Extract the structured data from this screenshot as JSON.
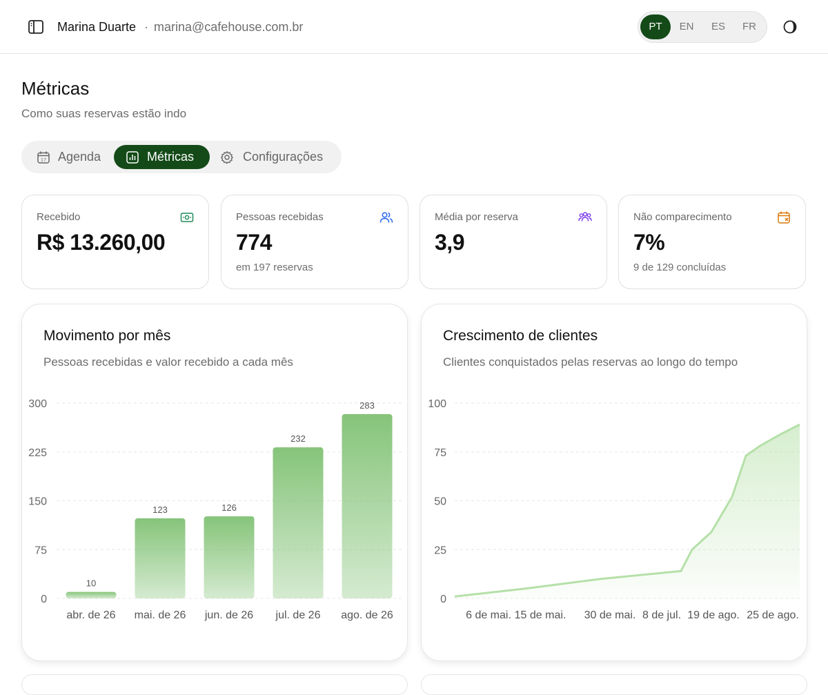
{
  "header": {
    "user_name": "Marina Duarte",
    "separator": "·",
    "user_email": "marina@cafehouse.com.br",
    "languages": [
      "PT",
      "EN",
      "ES",
      "FR"
    ],
    "active_language": "PT"
  },
  "page": {
    "title": "Métricas",
    "subtitle": "Como suas reservas estão indo"
  },
  "tabs": [
    {
      "label": "Agenda",
      "icon": "calendar-icon",
      "active": false
    },
    {
      "label": "Métricas",
      "icon": "bar-chart-icon",
      "active": true
    },
    {
      "label": "Configurações",
      "icon": "gear-icon",
      "active": false
    }
  ],
  "stats": [
    {
      "label": "Recebido",
      "value": "R$ 13.260,00",
      "sub": "",
      "icon": "money-icon",
      "icon_color": "#1e8a5a"
    },
    {
      "label": "Pessoas recebidas",
      "value": "774",
      "sub": "em 197 reservas",
      "icon": "users-icon",
      "icon_color": "#2563eb"
    },
    {
      "label": "Média por reserva",
      "value": "3,9",
      "sub": "",
      "icon": "group-icon",
      "icon_color": "#7c3aed"
    },
    {
      "label": "Não comparecimento",
      "value": "7%",
      "sub": "9 de 129 concluídas",
      "icon": "calendar-x-icon",
      "icon_color": "#d97706"
    }
  ],
  "panels": {
    "monthly": {
      "title": "Movimento por mês",
      "subtitle": "Pessoas recebidas e valor recebido a cada mês"
    },
    "growth": {
      "title": "Crescimento de clientes",
      "subtitle": "Clientes conquistados pelas reservas ao longo do tempo"
    }
  },
  "colors": {
    "brand": "#144a18",
    "bar_top": "#86c47a",
    "line": "#b5e0a8"
  },
  "chart_data": [
    {
      "type": "bar",
      "title": "Movimento por mês",
      "categories": [
        "abr. de 26",
        "mai. de 26",
        "jun. de 26",
        "jul. de 26",
        "ago. de 26"
      ],
      "values": [
        10,
        123,
        126,
        232,
        283
      ],
      "data_labels": [
        "10",
        "123",
        "126",
        "232",
        "283"
      ],
      "y_ticks": [
        "300",
        "225",
        "150",
        "75",
        "0"
      ],
      "ylim": [
        0,
        300
      ],
      "grid": true
    },
    {
      "type": "area",
      "title": "Crescimento de clientes",
      "x_ticks": [
        "6 de mai.",
        "15 de mai.",
        "30 de mai.",
        "8 de jul.",
        "19 de ago.",
        "25 de ago."
      ],
      "y_ticks": [
        "100",
        "75",
        "50",
        "25",
        "0"
      ],
      "ylim": [
        0,
        100
      ],
      "grid": true,
      "series": [
        {
          "values": [
            1,
            5,
            10,
            14,
            25,
            34,
            52,
            73,
            78,
            84,
            89
          ]
        }
      ]
    }
  ]
}
